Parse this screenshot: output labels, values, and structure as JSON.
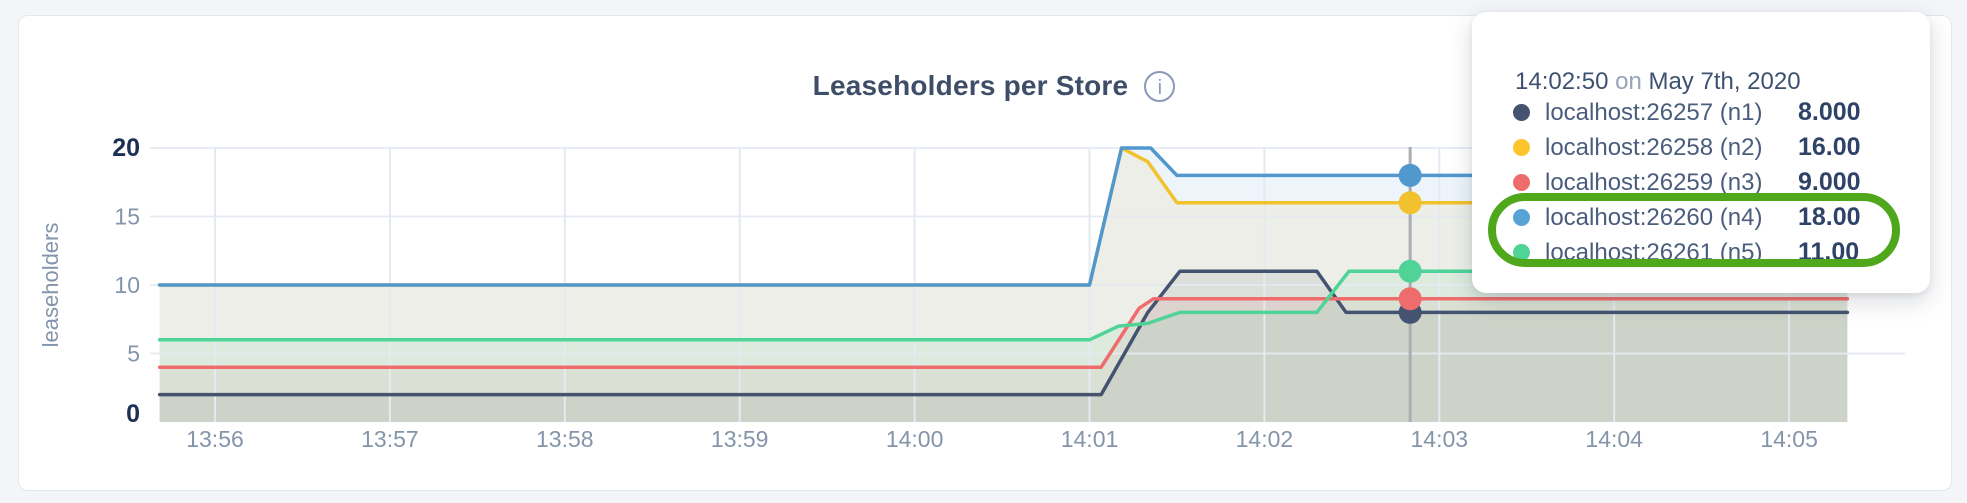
{
  "header": {
    "title": "Leaseholders per Store",
    "info_icon_glyph": "i"
  },
  "chart_data": {
    "type": "area",
    "title": "Leaseholders per Store",
    "xlabel": "",
    "ylabel": "leaseholders",
    "ylim": [
      0,
      20
    ],
    "y_ticks": [
      0,
      5,
      10,
      15,
      20
    ],
    "y_ticks_emphasized": [
      0,
      20
    ],
    "x_ticks": [
      "13:56",
      "13:57",
      "13:58",
      "13:59",
      "14:00",
      "14:01",
      "14:02",
      "14:03",
      "14:04",
      "14:05"
    ],
    "x_range": [
      "13:55:41",
      "14:05:20"
    ],
    "grid": true,
    "legend_position": "hover-tooltip",
    "series": [
      {
        "name": "localhost:26257 (n1)",
        "color": "#44536f",
        "points": [
          [
            "13:55:41",
            2
          ],
          [
            "14:01:04",
            2
          ],
          [
            "14:01:20",
            8
          ],
          [
            "14:01:31",
            11
          ],
          [
            "14:02:18",
            11
          ],
          [
            "14:02:28",
            8
          ],
          [
            "14:05:20",
            8
          ]
        ]
      },
      {
        "name": "localhost:26258 (n2)",
        "color": "#f2c12e",
        "points": [
          [
            "13:55:41",
            10
          ],
          [
            "14:01:00",
            10
          ],
          [
            "14:01:11",
            20
          ],
          [
            "14:01:20",
            19
          ],
          [
            "14:01:30",
            16
          ],
          [
            "14:05:20",
            16
          ]
        ]
      },
      {
        "name": "localhost:26259 (n3)",
        "color": "#ee6c6c",
        "points": [
          [
            "13:55:41",
            4
          ],
          [
            "14:01:04",
            4
          ],
          [
            "14:01:17",
            8.3
          ],
          [
            "14:01:22",
            9
          ],
          [
            "14:05:20",
            9
          ]
        ]
      },
      {
        "name": "localhost:26260 (n4)",
        "color": "#5198ce",
        "points": [
          [
            "13:55:41",
            10
          ],
          [
            "14:01:00",
            10
          ],
          [
            "14:01:11",
            20
          ],
          [
            "14:01:21",
            20
          ],
          [
            "14:01:30",
            18
          ],
          [
            "14:05:20",
            18
          ]
        ]
      },
      {
        "name": "localhost:26261 (n5)",
        "color": "#4fd396",
        "points": [
          [
            "13:55:41",
            6
          ],
          [
            "14:01:00",
            6
          ],
          [
            "14:01:10",
            7
          ],
          [
            "14:01:20",
            7.2
          ],
          [
            "14:01:31",
            8
          ],
          [
            "14:02:18",
            8
          ],
          [
            "14:02:29",
            11
          ],
          [
            "14:05:20",
            11
          ]
        ]
      }
    ],
    "hover_time": "14:02:50",
    "hover_values": [
      8,
      16,
      9,
      18,
      11
    ]
  },
  "chart_style": {
    "gridline_color": "#e4eaf2",
    "crosshair_color": "#a9aeb3",
    "axis_label_color": "#8494aa",
    "axis_label_bold_color": "#1c2f55",
    "fill_opacity": 0.1,
    "line_width": 3.5
  },
  "tooltip": {
    "time": "14:02:50",
    "separator": "on",
    "date": "May 7th, 2020",
    "rows": [
      {
        "label": "localhost:26257 (n1)",
        "value": "8.000",
        "color": "#44536f",
        "highlighted": false
      },
      {
        "label": "localhost:26258 (n2)",
        "value": "16.00",
        "color": "#fdc42d",
        "highlighted": false
      },
      {
        "label": "localhost:26259 (n3)",
        "value": "9.000",
        "color": "#ee6c6c",
        "highlighted": false
      },
      {
        "label": "localhost:26260 (n4)",
        "value": "18.00",
        "color": "#59a2d6",
        "highlighted": true
      },
      {
        "label": "localhost:26261 (n5)",
        "value": "11.00",
        "color": "#4fd396",
        "highlighted": true
      }
    ],
    "annotation_color": "#4fa81b"
  }
}
